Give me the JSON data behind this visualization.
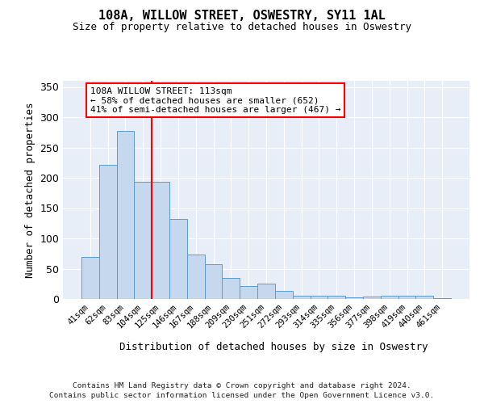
{
  "title": "108A, WILLOW STREET, OSWESTRY, SY11 1AL",
  "subtitle": "Size of property relative to detached houses in Oswestry",
  "xlabel_bottom": "Distribution of detached houses by size in Oswestry",
  "ylabel": "Number of detached properties",
  "bar_color": "#c5d8ee",
  "bar_edge_color": "#5b9bd5",
  "background_color": "#e8eef8",
  "grid_color": "#ffffff",
  "categories": [
    "41sqm",
    "62sqm",
    "83sqm",
    "104sqm",
    "125sqm",
    "146sqm",
    "167sqm",
    "188sqm",
    "209sqm",
    "230sqm",
    "251sqm",
    "272sqm",
    "293sqm",
    "314sqm",
    "335sqm",
    "356sqm",
    "377sqm",
    "398sqm",
    "419sqm",
    "440sqm",
    "461sqm"
  ],
  "values": [
    70,
    222,
    278,
    193,
    193,
    132,
    73,
    58,
    35,
    22,
    25,
    14,
    6,
    5,
    6,
    3,
    4,
    5,
    5,
    6,
    2
  ],
  "ylim": [
    0,
    360
  ],
  "yticks": [
    0,
    50,
    100,
    150,
    200,
    250,
    300,
    350
  ],
  "annotation_line1": "108A WILLOW STREET: 113sqm",
  "annotation_line2": "← 58% of detached houses are smaller (652)",
  "annotation_line3": "41% of semi-detached houses are larger (467) →",
  "red_line_x": 3.5,
  "footer_line1": "Contains HM Land Registry data © Crown copyright and database right 2024.",
  "footer_line2": "Contains public sector information licensed under the Open Government Licence v3.0."
}
